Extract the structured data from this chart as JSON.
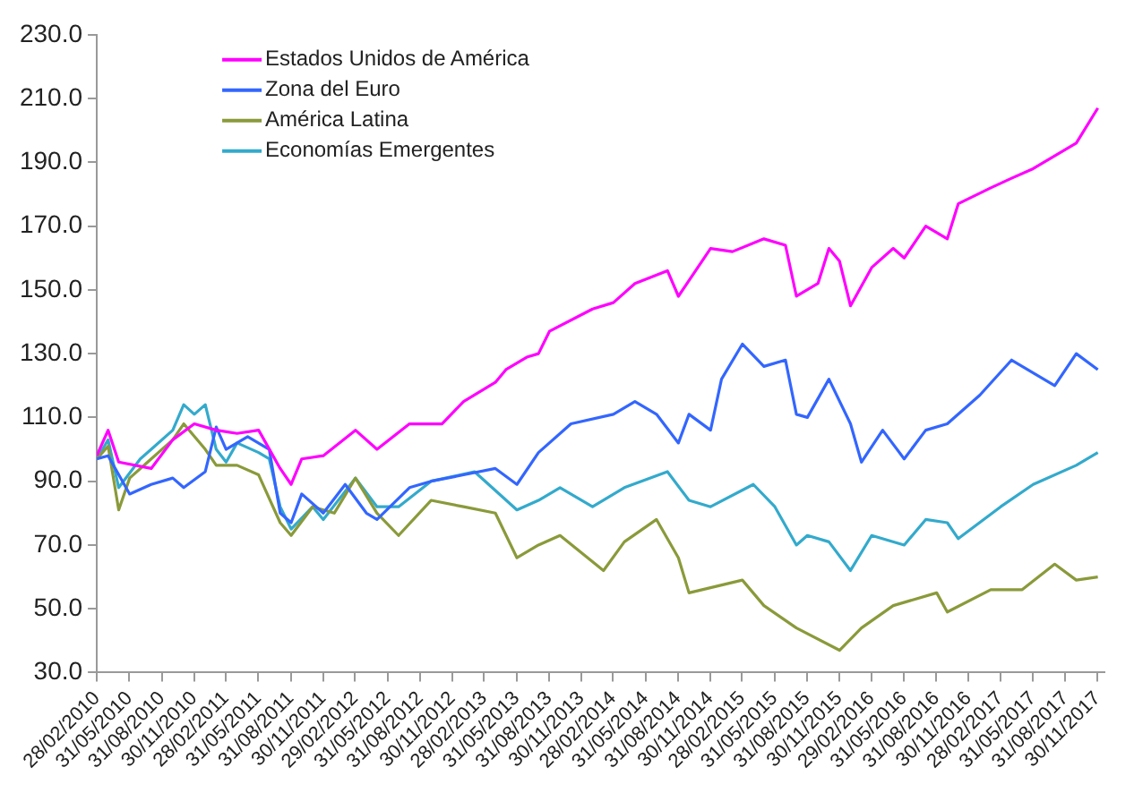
{
  "chart_data": {
    "type": "line",
    "xlim": [
      "2010-02-28",
      "2017-12-20"
    ],
    "xticks": [
      {
        "value": "2010-02-28",
        "label": "28/02/2010"
      },
      {
        "value": "2010-05-31",
        "label": "31/05/2010"
      },
      {
        "value": "2010-08-31",
        "label": "31/08/2010"
      },
      {
        "value": "2010-11-30",
        "label": "30/11/2010"
      },
      {
        "value": "2011-02-28",
        "label": "28/02/2011"
      },
      {
        "value": "2011-05-31",
        "label": "31/05/2011"
      },
      {
        "value": "2011-08-31",
        "label": "31/08/2011"
      },
      {
        "value": "2011-11-30",
        "label": "30/11/2011"
      },
      {
        "value": "2012-02-29",
        "label": "29/02/2012"
      },
      {
        "value": "2012-05-31",
        "label": "31/05/2012"
      },
      {
        "value": "2012-08-31",
        "label": "31/08/2012"
      },
      {
        "value": "2012-11-30",
        "label": "30/11/2012"
      },
      {
        "value": "2013-02-28",
        "label": "28/02/2013"
      },
      {
        "value": "2013-05-31",
        "label": "31/05/2013"
      },
      {
        "value": "2013-08-31",
        "label": "31/08/2013"
      },
      {
        "value": "2013-11-30",
        "label": "30/11/2013"
      },
      {
        "value": "2014-02-28",
        "label": "28/02/2014"
      },
      {
        "value": "2014-05-31",
        "label": "31/05/2014"
      },
      {
        "value": "2014-08-31",
        "label": "31/08/2014"
      },
      {
        "value": "2014-11-30",
        "label": "30/11/2014"
      },
      {
        "value": "2015-02-28",
        "label": "28/02/2015"
      },
      {
        "value": "2015-05-31",
        "label": "31/05/2015"
      },
      {
        "value": "2015-08-31",
        "label": "31/08/2015"
      },
      {
        "value": "2015-11-30",
        "label": "30/11/2015"
      },
      {
        "value": "2016-02-29",
        "label": "29/02/2016"
      },
      {
        "value": "2016-05-31",
        "label": "31/05/2016"
      },
      {
        "value": "2016-08-31",
        "label": "31/08/2016"
      },
      {
        "value": "2016-11-30",
        "label": "30/11/2016"
      },
      {
        "value": "2017-02-28",
        "label": "28/02/2017"
      },
      {
        "value": "2017-05-31",
        "label": "31/05/2017"
      },
      {
        "value": "2017-08-31",
        "label": "31/08/2017"
      },
      {
        "value": "2017-11-30",
        "label": "30/11/2017"
      }
    ],
    "ylim": [
      30,
      230
    ],
    "yticks": [
      {
        "value": 30,
        "label": "30.0"
      },
      {
        "value": 50,
        "label": "50.0"
      },
      {
        "value": 70,
        "label": "70.0"
      },
      {
        "value": 90,
        "label": "90.0"
      },
      {
        "value": 110,
        "label": "110.0"
      },
      {
        "value": 130,
        "label": "130.0"
      },
      {
        "value": 150,
        "label": "150.0"
      },
      {
        "value": 170,
        "label": "170.0"
      },
      {
        "value": 190,
        "label": "190.0"
      },
      {
        "value": 210,
        "label": "210.0"
      },
      {
        "value": 230,
        "label": "230.0"
      }
    ],
    "grid": false,
    "legend": "top left",
    "marker": "none",
    "line_style": "solid",
    "series": [
      {
        "name": "Estados Unidos de América",
        "color": "#ff00ff",
        "x": [
          "2010-02-28",
          "2010-04",
          "2010-05",
          "2010-08",
          "2010-10",
          "2010-12",
          "2011-02",
          "2011-04",
          "2011-06",
          "2011-08",
          "2011-09",
          "2011-10",
          "2011-12",
          "2012-03",
          "2012-05",
          "2012-08",
          "2012-11",
          "2013-01",
          "2013-04",
          "2013-05",
          "2013-07",
          "2013-08",
          "2013-09",
          "2014-01",
          "2014-03",
          "2014-05",
          "2014-08",
          "2014-09",
          "2014-12",
          "2015-02",
          "2015-05",
          "2015-07",
          "2015-08",
          "2015-10",
          "2015-11",
          "2015-12",
          "2016-01",
          "2016-03",
          "2016-05",
          "2016-06",
          "2016-08",
          "2016-10",
          "2016-11",
          "2017-02",
          "2017-04",
          "2017-06",
          "2017-08",
          "2017-10",
          "2017-12"
        ],
        "values": [
          98,
          106,
          96,
          94,
          103,
          108,
          106,
          105,
          106,
          94,
          89,
          97,
          98,
          106,
          100,
          108,
          108,
          115,
          121,
          125,
          129,
          130,
          137,
          144,
          146,
          152,
          156,
          148,
          163,
          162,
          166,
          164,
          148,
          152,
          163,
          159,
          145,
          157,
          163,
          160,
          170,
          166,
          177,
          182,
          185,
          188,
          192,
          196,
          207
        ]
      },
      {
        "name": "Zona del Euro",
        "color": "#3366ff",
        "x": [
          "2010-02-28",
          "2010-04",
          "2010-06",
          "2010-08",
          "2010-10",
          "2010-11",
          "2011-01",
          "2011-02",
          "2011-03",
          "2011-05",
          "2011-07",
          "2011-08",
          "2011-09",
          "2011-10",
          "2011-12",
          "2012-02",
          "2012-04",
          "2012-05",
          "2012-08",
          "2012-10",
          "2013-01",
          "2013-04",
          "2013-06",
          "2013-08",
          "2013-11",
          "2014-03",
          "2014-05",
          "2014-07",
          "2014-09",
          "2014-10",
          "2014-12",
          "2015-01",
          "2015-03",
          "2015-05",
          "2015-07",
          "2015-08",
          "2015-09",
          "2015-11",
          "2016-01",
          "2016-02",
          "2016-04",
          "2016-06",
          "2016-08",
          "2016-10",
          "2017-01",
          "2017-04",
          "2017-08",
          "2017-10",
          "2017-12"
        ],
        "values": [
          97,
          98,
          86,
          89,
          91,
          88,
          93,
          107,
          100,
          104,
          100,
          80,
          77,
          86,
          80,
          89,
          80,
          78,
          88,
          90,
          92,
          94,
          89,
          99,
          108,
          111,
          115,
          111,
          102,
          111,
          106,
          122,
          133,
          126,
          128,
          111,
          110,
          122,
          108,
          96,
          106,
          97,
          106,
          108,
          117,
          128,
          120,
          130,
          125
        ]
      },
      {
        "name": "América Latina",
        "color": "#8a9a3a",
        "x": [
          "2010-02-28",
          "2010-04",
          "2010-05",
          "2010-06",
          "2010-08",
          "2010-10",
          "2010-11",
          "2011-01",
          "2011-02",
          "2011-04",
          "2011-06",
          "2011-08",
          "2011-09",
          "2011-11",
          "2012-01",
          "2012-03",
          "2012-05",
          "2012-07",
          "2012-10",
          "2013-01",
          "2013-04",
          "2013-06",
          "2013-08",
          "2013-10",
          "2014-02",
          "2014-04",
          "2014-07",
          "2014-09",
          "2014-10",
          "2015-03",
          "2015-05",
          "2015-08",
          "2015-12",
          "2016-02",
          "2016-05",
          "2016-09",
          "2016-10",
          "2017-02",
          "2017-05",
          "2017-08",
          "2017-10",
          "2017-12"
        ],
        "values": [
          97,
          101,
          81,
          91,
          97,
          103,
          108,
          100,
          95,
          95,
          92,
          77,
          73,
          82,
          80,
          91,
          80,
          73,
          84,
          82,
          80,
          66,
          70,
          73,
          62,
          71,
          78,
          66,
          55,
          59,
          51,
          44,
          37,
          44,
          51,
          55,
          49,
          56,
          56,
          64,
          59,
          60
        ]
      },
      {
        "name": "Economías Emergentes",
        "color": "#33aacc",
        "x": [
          "2010-02-28",
          "2010-04",
          "2010-05",
          "2010-07",
          "2010-08",
          "2010-10",
          "2010-11",
          "2010-12",
          "2011-01",
          "2011-02",
          "2011-03",
          "2011-04",
          "2011-06",
          "2011-07",
          "2011-08",
          "2011-09",
          "2011-11",
          "2011-12",
          "2012-03",
          "2012-05",
          "2012-07",
          "2012-10",
          "2013-02",
          "2013-06",
          "2013-08",
          "2013-10",
          "2014-01",
          "2014-04",
          "2014-08",
          "2014-10",
          "2014-12",
          "2015-04",
          "2015-06",
          "2015-08",
          "2015-09",
          "2015-11",
          "2016-01",
          "2016-03",
          "2016-06",
          "2016-08",
          "2016-10",
          "2016-11",
          "2017-03",
          "2017-06",
          "2017-10",
          "2017-12"
        ],
        "values": [
          97,
          103,
          88,
          97,
          100,
          106,
          114,
          111,
          114,
          100,
          96,
          102,
          99,
          97,
          82,
          75,
          82,
          78,
          91,
          82,
          82,
          90,
          93,
          81,
          84,
          88,
          82,
          88,
          93,
          84,
          82,
          89,
          82,
          70,
          73,
          71,
          62,
          73,
          70,
          78,
          77,
          72,
          82,
          89,
          95,
          99
        ]
      }
    ]
  }
}
